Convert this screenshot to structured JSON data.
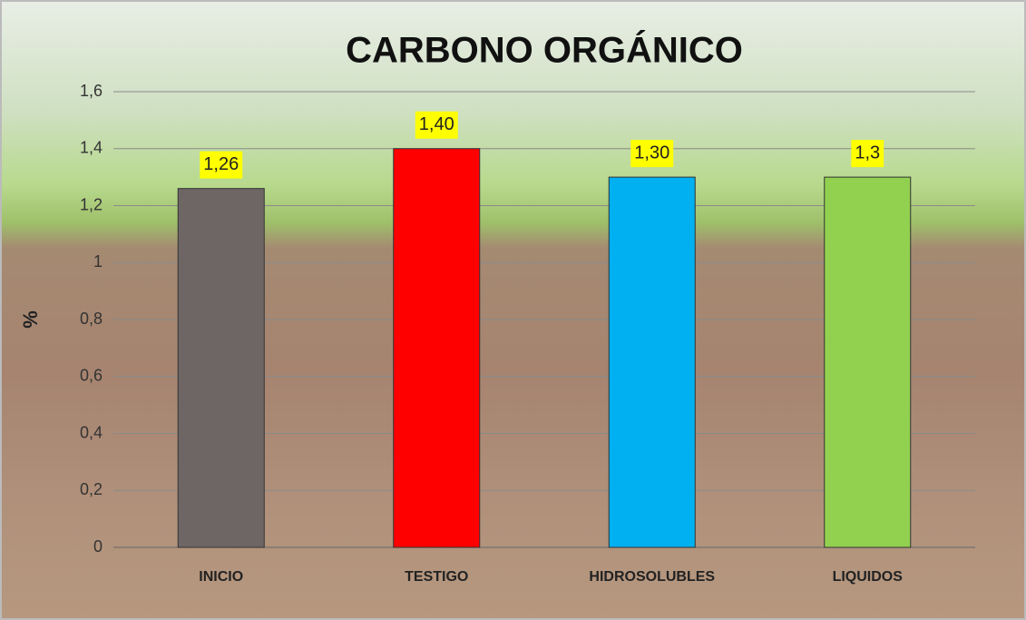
{
  "chart_data": {
    "type": "bar",
    "title": "CARBONO ORGÁNICO",
    "y_label": "%",
    "categories": [
      "INICIO",
      "TESTIGO",
      "HIDROSOLUBLES",
      "LIQUIDOS"
    ],
    "values": [
      1.26,
      1.4,
      1.3,
      1.3
    ],
    "value_labels": [
      "1,26",
      "1,40",
      "1,30",
      "1,3"
    ],
    "colors": [
      "#6e6665",
      "#ff0000",
      "#00b0f0",
      "#92d050"
    ],
    "ylim": [
      0,
      1.6
    ],
    "yticks": [
      0,
      {
        "value": 0.2,
        "label": "0,2"
      },
      {
        "value": 0.4,
        "label": "0,4"
      },
      {
        "value": 0.6,
        "label": "0,6"
      },
      {
        "value": 0.8,
        "label": "0,8"
      },
      1,
      {
        "value": 1.2,
        "label": "1,2"
      },
      {
        "value": 1.4,
        "label": "1,4"
      },
      {
        "value": 1.6,
        "label": "1,6"
      }
    ],
    "grid": true
  }
}
